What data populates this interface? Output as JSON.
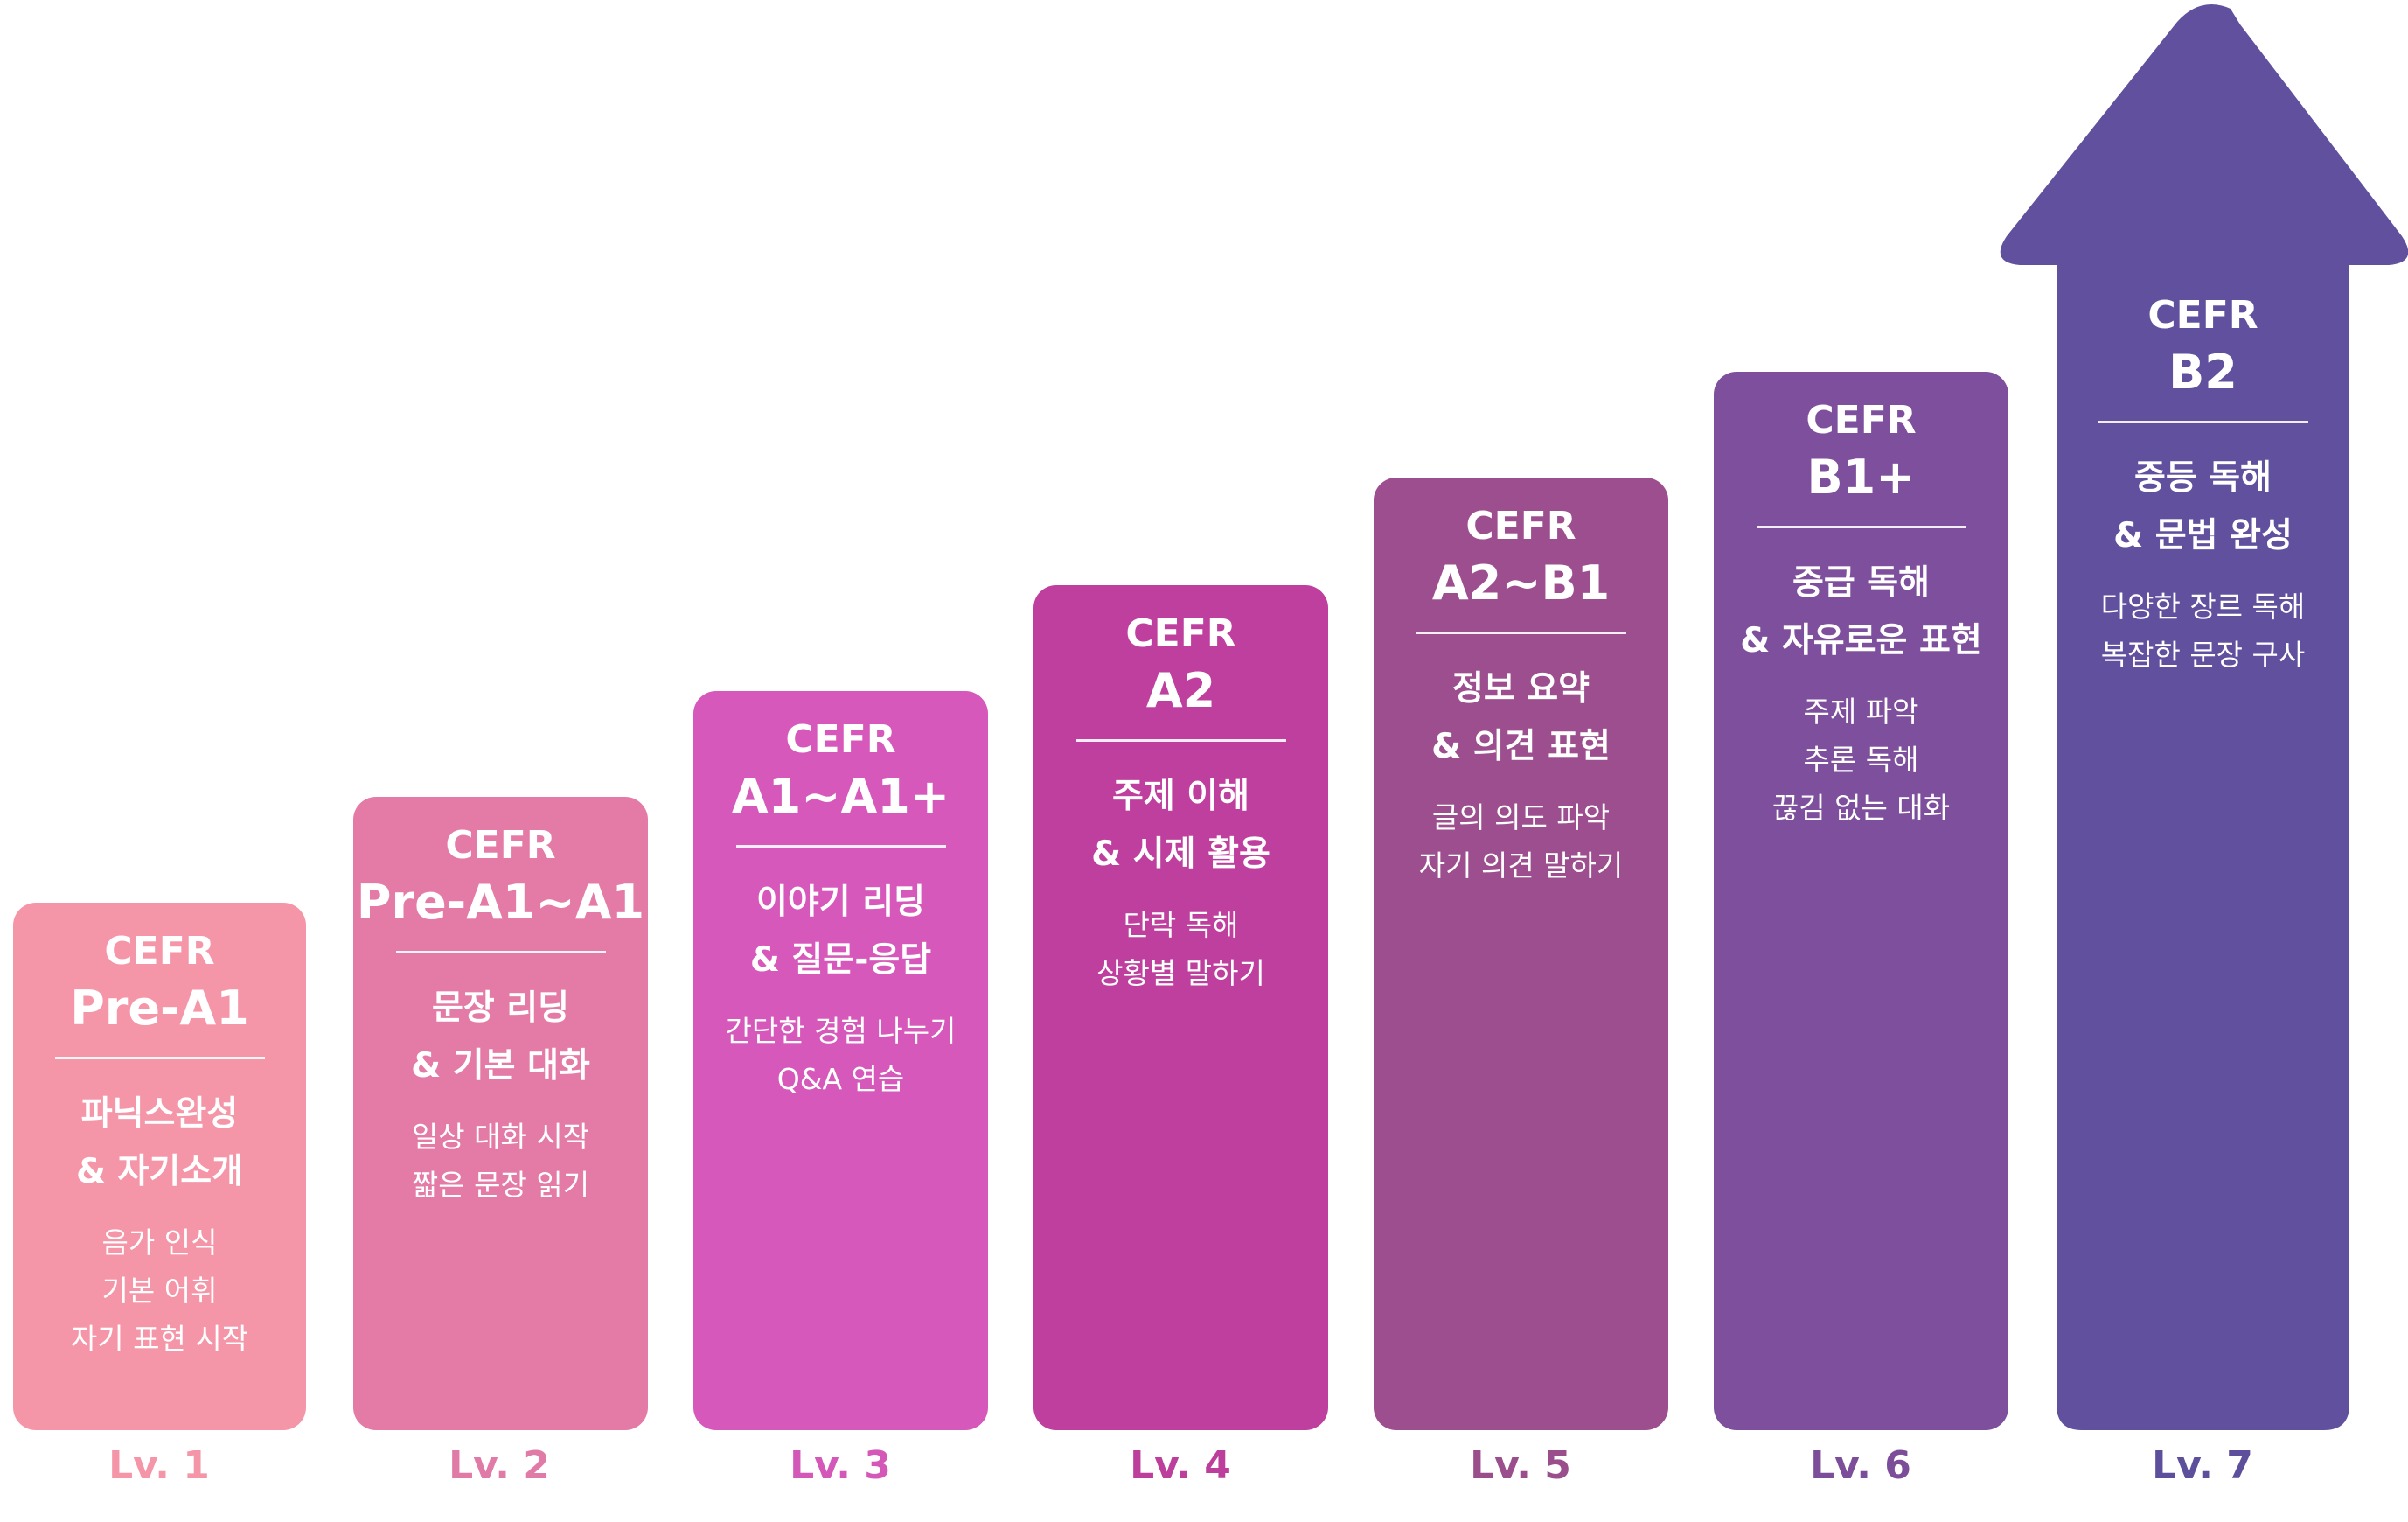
{
  "steps": [
    {
      "cefr": "CEFR",
      "level": "Pre-A1",
      "head1": "파닉스완성",
      "head2": "& 자기소개",
      "sub": [
        "음가 인식",
        "기본 어휘",
        "자기 표현 시작"
      ],
      "lv": "Lv. 1",
      "color": "#F596A8",
      "lvColor": "#F596A8"
    },
    {
      "cefr": "CEFR",
      "level": "Pre-A1~A1",
      "head1": "문장 리딩",
      "head2": "& 기본 대화",
      "sub": [
        "일상 대화 시작",
        "짧은 문장 읽기"
      ],
      "lv": "Lv. 2",
      "color": "#E47BA6",
      "lvColor": "#E07AA6"
    },
    {
      "cefr": "CEFR",
      "level": "A1~A1+",
      "head1": "이야기 리딩",
      "head2": "& 질문-응답",
      "sub": [
        "간단한 경험 나누기",
        "Q&A 연습"
      ],
      "lv": "Lv. 3",
      "color": "#D658BA",
      "lvColor": "#D458B8"
    },
    {
      "cefr": "CEFR",
      "level": "A2",
      "head1": "주제 이해",
      "head2": "& 시제 활용",
      "sub": [
        "단락 독해",
        "상황별 말하기"
      ],
      "lv": "Lv. 4",
      "color": "#BE3F9E",
      "lvColor": "#BC3F9C"
    },
    {
      "cefr": "CEFR",
      "level": "A2~B1",
      "head1": "정보 요약",
      "head2": "& 의견 표현",
      "sub": [
        "글의 의도 파악",
        "자기 의견 말하기"
      ],
      "lv": "Lv. 5",
      "color": "#9C4E8E",
      "lvColor": "#9A4E8C"
    },
    {
      "cefr": "CEFR",
      "level": "B1+",
      "head1": "중급 독해",
      "head2": "& 자유로운 표현",
      "sub": [
        "주제 파악",
        "추론 독해",
        "끊김 없는 대화"
      ],
      "lv": "Lv. 6",
      "color": "#7E4F9C",
      "lvColor": "#7C4E9A"
    },
    {
      "cefr": "CEFR",
      "level": "B2",
      "head1": "중등 독해",
      "head2": "& 문법 완성",
      "sub": [
        "다양한 장르 독해",
        "복잡한 문장 구사"
      ],
      "lv": "Lv. 7",
      "color": "#60509E",
      "lvColor": "#5E4F9C"
    }
  ]
}
